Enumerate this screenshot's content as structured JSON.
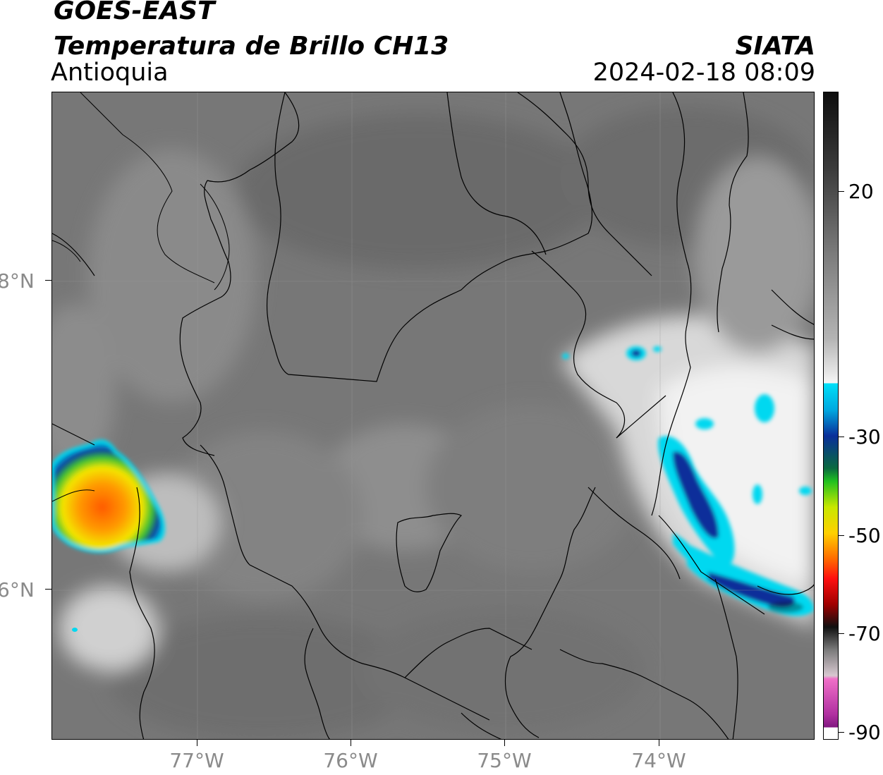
{
  "header": {
    "satellite": "GOES-EAST",
    "product": "Temperatura de Brillo CH13",
    "region": "Antioquia",
    "agency": "SIATA",
    "datetime": "2024-02-18 08:09"
  },
  "map": {
    "lat_labels": [
      "8°N",
      "6°N"
    ],
    "lon_labels": [
      "77°W",
      "76°W",
      "75°W",
      "74°W"
    ]
  },
  "colorbar": {
    "labels": [
      "20",
      "-30",
      "-50",
      "-70",
      "-90"
    ],
    "colors": {
      "warm_gray": "#7a7a7a",
      "light": "#f2f2f2",
      "cyan": "#00d8f0",
      "blue": "#0a2f9a",
      "green": "#1fb02a",
      "yellow": "#f0e600",
      "orange": "#ff8a00",
      "red": "#e80000",
      "black": "#0a0a0a",
      "pink": "#e860c8",
      "purple": "#8a1a8a"
    }
  }
}
